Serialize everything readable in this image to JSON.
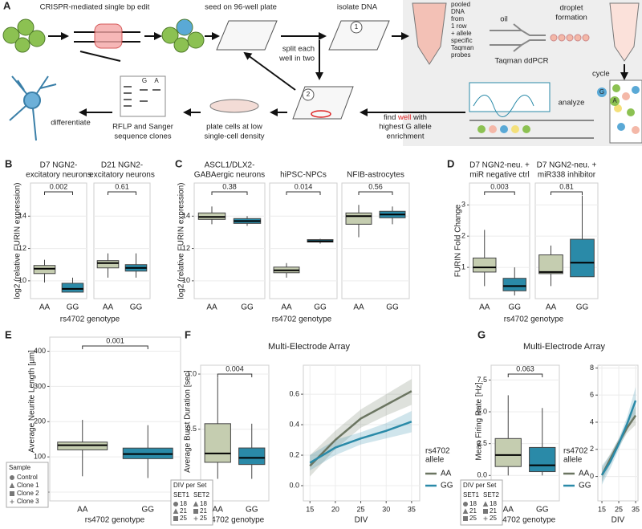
{
  "diagram": {
    "panel": "A",
    "step1": "CRISPR-mediated single bp edit",
    "step2": "seed on 96-well plate",
    "step3": "isolate DNA",
    "split": [
      "split each",
      "well in two"
    ],
    "pool": [
      "pooled",
      "DNA",
      "from",
      "1 row",
      "+ allele",
      "specific",
      "Taqman",
      "probes"
    ],
    "oil": "oil",
    "droplet": [
      "droplet",
      "formation"
    ],
    "ddpcr": "Taqman ddPCR",
    "cycle": "cycle",
    "analyze": "analyze",
    "find": [
      "find ",
      "well",
      " with"
    ],
    "find2": [
      "highest G allele",
      "enrichment"
    ],
    "plate": [
      "plate cells at low",
      "single-cell density"
    ],
    "rflp": [
      "RFLP and Sanger",
      "sequence clones"
    ],
    "differentiate": "differentiate",
    "markers": [
      "1",
      "2"
    ],
    "alleles": [
      "G",
      "A"
    ]
  },
  "chart_data": [
    {
      "type": "box",
      "panel": "B",
      "ylabel": "log2 (relative FURIN expression)",
      "xlabel": "rs4702 genotype",
      "ylim": [
        8.9,
        16.05
      ],
      "yticks": [
        10,
        12,
        14
      ],
      "grid": true,
      "box_colors": [
        "#c5cdb0",
        "#2a8aa8"
      ],
      "category_colors": [
        "#9aa57a",
        "#2a8aa8"
      ],
      "facets": [
        {
          "title": [
            "D7 NGN2-",
            "excitatory neurons"
          ],
          "categories": [
            "AA",
            "GG"
          ],
          "pvalue": 0.002,
          "pvalue_color": "#e0201b",
          "boxes": [
            {
              "low": 9.9,
              "q1": 10.45,
              "median": 10.75,
              "q3": 10.95,
              "high": 11.3
            },
            {
              "low": 9.3,
              "q1": 9.3,
              "median": 9.5,
              "q3": 9.85,
              "high": 10.2
            }
          ]
        },
        {
          "title": [
            "D21 NGN2-",
            "excitatory neurons"
          ],
          "categories": [
            "AA",
            "GG"
          ],
          "pvalue": 0.61,
          "pvalue_color": "#555555",
          "boxes": [
            {
              "low": 10.2,
              "q1": 10.8,
              "median": 11.1,
              "q3": 11.25,
              "high": 11.7
            },
            {
              "low": 10.2,
              "q1": 10.6,
              "median": 10.8,
              "q3": 11.0,
              "high": 11.7
            }
          ]
        }
      ]
    },
    {
      "type": "box",
      "panel": "C",
      "ylabel": "log2 (relative FURIN expression)",
      "xlabel": "rs4702 genotype",
      "ylim": [
        8.9,
        16.05
      ],
      "yticks": [
        10,
        12,
        14
      ],
      "grid": true,
      "box_colors": [
        "#c5cdb0",
        "#2a8aa8"
      ],
      "category_colors": [
        "#9aa57a",
        "#2a8aa8"
      ],
      "facets": [
        {
          "title": [
            "ASCL1/DLX2-",
            "GABAergic neurons"
          ],
          "categories": [
            "AA",
            "GG"
          ],
          "pvalue": 0.38,
          "pvalue_color": "#555555",
          "boxes": [
            {
              "low": 13.5,
              "q1": 13.8,
              "median": 13.95,
              "q3": 14.2,
              "high": 14.6
            },
            {
              "low": 13.4,
              "q1": 13.55,
              "median": 13.7,
              "q3": 13.85,
              "high": 14.0
            }
          ]
        },
        {
          "title": [
            "hiPSC-NPCs"
          ],
          "categories": [
            "AA",
            "GG"
          ],
          "pvalue": 0.014,
          "pvalue_color": "#e0201b",
          "boxes": [
            {
              "low": 10.2,
              "q1": 10.5,
              "median": 10.65,
              "q3": 10.85,
              "high": 11.1
            },
            {
              "low": 12.3,
              "q1": 12.4,
              "median": 12.45,
              "q3": 12.55,
              "high": 12.6
            }
          ]
        },
        {
          "title": [
            "NFIB-astrocytes"
          ],
          "categories": [
            "AA",
            "GG"
          ],
          "pvalue": 0.56,
          "pvalue_color": "#555555",
          "boxes": [
            {
              "low": 12.7,
              "q1": 13.5,
              "median": 14.0,
              "q3": 14.2,
              "high": 14.7
            },
            {
              "low": 13.5,
              "q1": 13.9,
              "median": 14.1,
              "q3": 14.3,
              "high": 14.6
            }
          ]
        }
      ]
    },
    {
      "type": "box",
      "panel": "D",
      "ylabel": "FURIN Fold Change",
      "xlabel": "rs4702 genotype",
      "ylim": [
        0,
        3.7
      ],
      "yticks": [
        1,
        2,
        3
      ],
      "grid": true,
      "box_colors": [
        "#c5cdb0",
        "#2a8aa8"
      ],
      "category_colors": [
        "#9aa57a",
        "#2a8aa8"
      ],
      "facets": [
        {
          "title": [
            "D7 NGN2-neu. +",
            "miR negative ctrl"
          ],
          "categories": [
            "AA",
            "GG"
          ],
          "pvalue": 0.003,
          "pvalue_color": "#e0201b",
          "boxes": [
            {
              "low": 0.4,
              "q1": 0.85,
              "median": 1.0,
              "q3": 1.3,
              "high": 2.2
            },
            {
              "low": 0.1,
              "q1": 0.25,
              "median": 0.4,
              "q3": 0.65,
              "high": 1.0
            }
          ]
        },
        {
          "title": [
            "D7 NGN2-neu. +",
            "miR338 inhibitor"
          ],
          "categories": [
            "AA",
            "GG"
          ],
          "pvalue": 0.81,
          "pvalue_color": "#555555",
          "boxes": [
            {
              "low": 0.4,
              "q1": 0.8,
              "median": 0.85,
              "q3": 1.4,
              "high": 1.7
            },
            {
              "low": 0.7,
              "q1": 0.7,
              "median": 1.15,
              "q3": 1.9,
              "high": 3.3
            }
          ]
        }
      ]
    },
    {
      "type": "box",
      "panel": "E",
      "ylabel": "Average Neurite Length [µm]",
      "xlabel": "rs4702 genotype",
      "ylim": [
        -25,
        440
      ],
      "yticks": [
        0,
        100,
        200,
        300,
        400
      ],
      "grid": true,
      "box_colors": [
        "#c5cdb0",
        "#2a8aa8"
      ],
      "category_colors": [
        "#9aa57a",
        "#2a8aa8"
      ],
      "legend": {
        "title": "Sample",
        "entries": [
          "Control",
          "Clone 1",
          "Clone 2",
          "Clone 3"
        ]
      },
      "facets": [
        {
          "categories": [
            "AA",
            "GG"
          ],
          "pvalue": 0.001,
          "pvalue_color": "#e0201b",
          "boxes": [
            {
              "low": 45,
              "q1": 120,
              "median": 133,
              "q3": 142,
              "high": 205
            },
            {
              "low": 40,
              "q1": 95,
              "median": 108,
              "q3": 125,
              "high": 190
            }
          ]
        }
      ]
    },
    {
      "type": "box",
      "panel": "F",
      "title": "Multi-Electrode Array",
      "ylabel": "Average Burst Duration [sec]",
      "xlabel": "rs4702 genotype",
      "ylim": [
        -0.15,
        1.08
      ],
      "yticks": [
        0.5,
        {
          "value": 1.0,
          "label": "1.0"
        }
      ],
      "grid": true,
      "box_colors": [
        "#c5cdb0",
        "#2a8aa8"
      ],
      "category_colors": [
        "#9aa57a",
        "#2a8aa8"
      ],
      "legend": {
        "title": "DIV per Set",
        "columns": [
          "SET1",
          "SET2"
        ],
        "rows": [
          [
            "18",
            "18"
          ],
          [
            "21",
            "21"
          ],
          [
            "25",
            "25"
          ]
        ]
      },
      "facets": [
        {
          "categories": [
            "AA",
            "GG"
          ],
          "pvalue": 0.004,
          "pvalue_color": "#e0201b",
          "boxes": [
            {
              "low": 0.05,
              "q1": 0.2,
              "median": 0.28,
              "q3": 0.55,
              "high": 0.97
            },
            {
              "low": 0.05,
              "q1": 0.18,
              "median": 0.24,
              "q3": 0.33,
              "high": 0.55
            }
          ]
        }
      ]
    },
    {
      "type": "line",
      "xlabel": "DIV",
      "x": [
        15,
        20,
        25,
        30,
        35
      ],
      "xlim": [
        13.7,
        36.6
      ],
      "xticks": [
        15,
        20,
        25,
        30,
        35
      ],
      "ylim": [
        -0.1,
        0.79
      ],
      "yticks": [
        {
          "value": 0,
          "label": "0.0"
        },
        0.2,
        0.4,
        0.6
      ],
      "grid": true,
      "legend": {
        "title": [
          "rs4702",
          "allele"
        ]
      },
      "series": [
        {
          "name": "AA",
          "color": "#6b7561",
          "values": [
            0.13,
            0.3,
            0.44,
            0.53,
            0.62
          ],
          "lower": [
            0.06,
            0.24,
            0.38,
            0.46,
            0.53
          ],
          "upper": [
            0.2,
            0.36,
            0.5,
            0.6,
            0.7
          ]
        },
        {
          "name": "GG",
          "color": "#2a8aa8",
          "values": [
            0.15,
            0.25,
            0.31,
            0.36,
            0.42
          ],
          "lower": [
            0.1,
            0.2,
            0.27,
            0.31,
            0.35
          ],
          "upper": [
            0.2,
            0.3,
            0.35,
            0.41,
            0.49
          ]
        }
      ]
    },
    {
      "type": "box",
      "panel": "G",
      "title": "Multi-Electrode Array",
      "ylabel": "Mean Firing Rate [Hz]",
      "xlabel": "rs4702 genotype",
      "ylim": [
        -2.0,
        8.66
      ],
      "yticks": [
        {
          "value": 0,
          "label": "0.0"
        },
        2.5,
        {
          "value": 5,
          "label": "5.0"
        },
        7.5
      ],
      "grid": true,
      "box_colors": [
        "#c5cdb0",
        "#2a8aa8"
      ],
      "category_colors": [
        "#9aa57a",
        "#2a8aa8"
      ],
      "legend": {
        "title": "DIV per Set",
        "columns": [
          "SET1",
          "SET2"
        ],
        "rows": [
          [
            "18",
            "18"
          ],
          [
            "21",
            "21"
          ],
          [
            "25",
            "25"
          ]
        ]
      },
      "facets": [
        {
          "categories": [
            "AA",
            "GG"
          ],
          "pvalue": 0.063,
          "pvalue_color": "#a0304a",
          "boxes": [
            {
              "low": 0,
              "q1": 0.7,
              "median": 1.6,
              "q3": 2.9,
              "high": 6.3
            },
            {
              "low": 0,
              "q1": 0.3,
              "median": 0.8,
              "q3": 2.2,
              "high": 5.3
            }
          ]
        }
      ]
    },
    {
      "type": "line",
      "xlabel": "DIV",
      "x": [
        15,
        20,
        25,
        30,
        35
      ],
      "xlim": [
        12.6,
        36.4
      ],
      "xticks": [
        15,
        25,
        35
      ],
      "ylim": [
        -1.8,
        8.2
      ],
      "yticks": [
        0,
        2,
        4,
        6,
        8
      ],
      "grid": true,
      "legend": {
        "title": [
          "rs4702",
          "allele"
        ]
      },
      "series": [
        {
          "name": "AA",
          "color": "#6b7561",
          "values": [
            0.1,
            1.3,
            2.5,
            3.6,
            4.5
          ],
          "lower": [
            -0.4,
            0.9,
            2.2,
            3.2,
            3.8
          ],
          "upper": [
            0.6,
            1.7,
            2.8,
            4.0,
            5.2
          ]
        },
        {
          "name": "GG",
          "color": "#2a8aa8",
          "values": [
            0.1,
            1.1,
            2.4,
            3.9,
            5.6
          ],
          "lower": [
            -0.6,
            0.6,
            2.0,
            3.4,
            4.6
          ],
          "upper": [
            0.8,
            1.6,
            2.8,
            4.4,
            6.6
          ]
        }
      ]
    }
  ]
}
